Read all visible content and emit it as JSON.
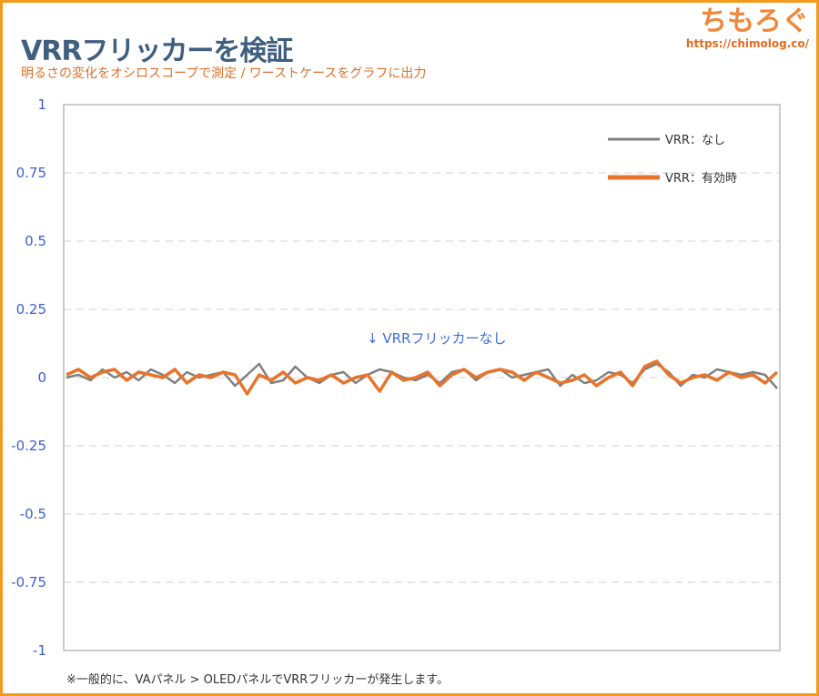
{
  "header": {
    "title": "VRRフリッカーを検証",
    "subtitle": "明るさの変化をオシロスコープで測定 / ワーストケースをグラフに出力",
    "logo": "ちもろぐ",
    "logo_url": "https://chimolog.co/"
  },
  "footnote": "※一般的に、VAパネル > OLEDパネルでVRRフリッカーが発生します。",
  "chart_data": {
    "type": "line",
    "title": "VRRフリッカーを検証",
    "ylim": [
      -1,
      1
    ],
    "yticks": [
      1,
      0.75,
      0.5,
      0.25,
      0,
      -0.25,
      -0.5,
      -0.75,
      -1
    ],
    "ytick_labels": [
      "1",
      "0.75",
      "0.5",
      "0.25",
      "0",
      "-0.25",
      "-0.5",
      "-0.75",
      "-1"
    ],
    "grid": true,
    "legend_position": "top-right",
    "annotation": "↓ VRRフリッカーなし",
    "colors": {
      "off": "#808080",
      "on": "#e8742c"
    },
    "series": [
      {
        "name": "VRR：なし",
        "values": [
          0,
          0.01,
          -0.01,
          0.03,
          0,
          0.02,
          -0.01,
          0.03,
          0.01,
          -0.02,
          0.02,
          0,
          0.01,
          0.02,
          -0.03,
          0.01,
          0.05,
          -0.02,
          -0.01,
          0.04,
          0,
          -0.02,
          0.01,
          0.02,
          -0.02,
          0.01,
          0.03,
          0.02,
          0,
          -0.01,
          0.01,
          -0.02,
          0.02,
          0.03,
          -0.01,
          0.02,
          0.03,
          0,
          0.01,
          0.02,
          0.03,
          -0.03,
          0.01,
          -0.02,
          -0.01,
          0.02,
          0.01,
          -0.02,
          0.03,
          0.05,
          0.02,
          -0.03,
          0.01,
          0,
          0.03,
          0.02,
          0.01,
          0.02,
          0.01,
          -0.04
        ]
      },
      {
        "name": "VRR：有効時",
        "values": [
          0.01,
          0.03,
          0,
          0.02,
          0.03,
          -0.01,
          0.02,
          0.01,
          0,
          0.03,
          -0.02,
          0.01,
          0,
          0.02,
          0.01,
          -0.06,
          0.01,
          -0.01,
          0.02,
          -0.02,
          0,
          -0.01,
          0.01,
          -0.02,
          0,
          0.01,
          -0.05,
          0.02,
          -0.01,
          0,
          0.02,
          -0.03,
          0.01,
          0.03,
          0,
          0.02,
          0.03,
          0.02,
          -0.01,
          0.02,
          0,
          -0.02,
          -0.01,
          0.01,
          -0.03,
          0,
          0.02,
          -0.03,
          0.04,
          0.06,
          0.01,
          -0.02,
          0,
          0.01,
          -0.01,
          0.02,
          0,
          0.01,
          -0.02,
          0.02
        ]
      }
    ]
  }
}
